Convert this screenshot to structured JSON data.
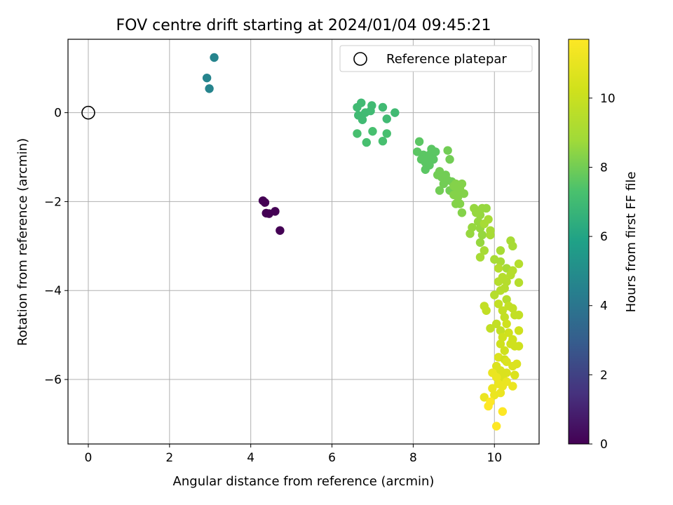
{
  "chart_data": {
    "type": "scatter",
    "title": "FOV centre drift starting at 2024/01/04 09:45:21",
    "xlabel": "Angular distance from reference (arcmin)",
    "ylabel": "Rotation from reference (arcmin)",
    "xlim": [
      -0.5,
      11.1
    ],
    "ylim": [
      -7.45,
      1.65
    ],
    "xticks": [
      0,
      2,
      4,
      6,
      8,
      10
    ],
    "yticks": [
      0,
      -2,
      -4,
      -6
    ],
    "xtick_labels": [
      "0",
      "2",
      "4",
      "6",
      "8",
      "10"
    ],
    "ytick_labels": [
      "0",
      "−2",
      "−4",
      "−6"
    ],
    "grid": true,
    "legend": {
      "entries": [
        "Reference platepar"
      ],
      "placement": "top-right"
    },
    "colorbar": {
      "label": "Hours from first FF file",
      "range": [
        0,
        11.7
      ],
      "ticks": [
        0,
        2,
        4,
        6,
        8,
        10
      ],
      "tick_labels": [
        "0",
        "2",
        "4",
        "6",
        "8",
        "10"
      ],
      "colormap": "viridis"
    },
    "reference": {
      "name": "Reference platepar",
      "x": 0,
      "y": 0
    },
    "series": [
      {
        "points": [
          [
            4.3,
            -1.98,
            0.0
          ],
          [
            4.35,
            -2.02,
            0.0
          ],
          [
            4.38,
            -2.26,
            0.0
          ],
          [
            4.45,
            -2.27,
            0.0
          ],
          [
            4.6,
            -2.22,
            0.0
          ],
          [
            4.72,
            -2.65,
            0.0
          ],
          [
            2.92,
            0.78,
            4.6
          ],
          [
            2.98,
            0.54,
            4.6
          ],
          [
            3.1,
            1.24,
            4.6
          ],
          [
            6.62,
            0.12,
            7.0
          ],
          [
            6.72,
            0.22,
            7.0
          ],
          [
            6.65,
            -0.06,
            7.0
          ],
          [
            6.75,
            -0.16,
            7.0
          ],
          [
            6.82,
            0.0,
            7.0
          ],
          [
            6.95,
            0.04,
            7.0
          ],
          [
            6.98,
            0.16,
            7.0
          ],
          [
            7.25,
            0.12,
            7.0
          ],
          [
            7.35,
            -0.14,
            7.0
          ],
          [
            7.55,
            0.0,
            7.0
          ],
          [
            6.62,
            -0.47,
            7.2
          ],
          [
            6.85,
            -0.67,
            7.2
          ],
          [
            7.0,
            -0.42,
            7.2
          ],
          [
            7.25,
            -0.64,
            7.2
          ],
          [
            7.35,
            -0.47,
            7.2
          ],
          [
            8.15,
            -0.65,
            7.6
          ],
          [
            8.1,
            -0.88,
            7.6
          ],
          [
            8.25,
            -0.95,
            7.6
          ],
          [
            8.3,
            -1.12,
            7.6
          ],
          [
            8.2,
            -1.05,
            7.6
          ],
          [
            8.4,
            -0.95,
            7.6
          ],
          [
            8.35,
            -1.05,
            7.6
          ],
          [
            8.45,
            -0.82,
            7.6
          ],
          [
            8.5,
            -1.05,
            7.6
          ],
          [
            8.3,
            -1.28,
            7.6
          ],
          [
            8.55,
            -0.88,
            7.6
          ],
          [
            8.4,
            -1.18,
            7.6
          ],
          [
            8.6,
            -1.4,
            8.0
          ],
          [
            8.65,
            -1.32,
            8.0
          ],
          [
            8.7,
            -1.45,
            8.0
          ],
          [
            8.75,
            -1.6,
            8.0
          ],
          [
            8.8,
            -1.4,
            8.0
          ],
          [
            8.85,
            -1.52,
            8.0
          ],
          [
            8.9,
            -1.75,
            8.0
          ],
          [
            8.65,
            -1.75,
            8.0
          ],
          [
            8.9,
            -1.05,
            8.0
          ],
          [
            8.85,
            -0.85,
            8.0
          ],
          [
            8.95,
            -1.55,
            8.0
          ],
          [
            9.0,
            -1.65,
            8.3
          ],
          [
            9.05,
            -1.6,
            8.3
          ],
          [
            9.1,
            -1.75,
            8.3
          ],
          [
            9.0,
            -1.85,
            8.3
          ],
          [
            9.15,
            -1.72,
            8.3
          ],
          [
            9.2,
            -1.6,
            8.3
          ],
          [
            9.25,
            -1.82,
            8.3
          ],
          [
            9.05,
            -2.05,
            8.3
          ],
          [
            9.15,
            -2.05,
            8.3
          ],
          [
            9.2,
            -2.25,
            8.3
          ],
          [
            9.1,
            -1.9,
            8.3
          ],
          [
            9.4,
            -2.72,
            8.6
          ],
          [
            9.45,
            -2.58,
            8.6
          ],
          [
            9.5,
            -2.15,
            8.6
          ],
          [
            9.55,
            -2.25,
            8.6
          ],
          [
            9.6,
            -2.45,
            8.6
          ],
          [
            9.65,
            -2.3,
            8.6
          ],
          [
            9.7,
            -2.15,
            8.6
          ],
          [
            9.65,
            -2.6,
            8.6
          ],
          [
            9.7,
            -2.75,
            8.6
          ],
          [
            9.8,
            -2.15,
            8.6
          ],
          [
            9.65,
            -2.92,
            8.6
          ],
          [
            9.75,
            -2.5,
            9.0
          ],
          [
            9.85,
            -2.4,
            9.0
          ],
          [
            9.9,
            -2.65,
            9.0
          ],
          [
            9.9,
            -2.75,
            9.0
          ],
          [
            9.75,
            -3.1,
            9.0
          ],
          [
            9.65,
            -3.25,
            9.0
          ],
          [
            10.0,
            -3.3,
            9.0
          ],
          [
            10.15,
            -3.1,
            9.0
          ],
          [
            10.15,
            -3.35,
            9.0
          ],
          [
            10.4,
            -2.88,
            9.0
          ],
          [
            10.45,
            -3.0,
            9.0
          ],
          [
            10.3,
            -3.5,
            9.0
          ],
          [
            10.1,
            -3.5,
            9.4
          ],
          [
            10.2,
            -3.7,
            9.4
          ],
          [
            10.3,
            -3.8,
            9.4
          ],
          [
            10.1,
            -3.8,
            9.4
          ],
          [
            10.25,
            -3.95,
            9.4
          ],
          [
            10.4,
            -3.65,
            9.4
          ],
          [
            10.45,
            -3.55,
            9.4
          ],
          [
            10.6,
            -3.4,
            9.4
          ],
          [
            10.6,
            -3.82,
            9.4
          ],
          [
            10.0,
            -4.1,
            9.4
          ],
          [
            10.15,
            -4.0,
            9.4
          ],
          [
            10.3,
            -4.2,
            9.4
          ],
          [
            9.75,
            -4.35,
            9.8
          ],
          [
            9.8,
            -4.45,
            9.8
          ],
          [
            10.1,
            -4.3,
            9.8
          ],
          [
            10.2,
            -4.45,
            9.8
          ],
          [
            10.35,
            -4.35,
            9.8
          ],
          [
            10.25,
            -4.6,
            9.8
          ],
          [
            10.45,
            -4.4,
            9.8
          ],
          [
            10.5,
            -4.55,
            9.8
          ],
          [
            10.6,
            -4.55,
            9.8
          ],
          [
            10.05,
            -4.75,
            9.8
          ],
          [
            10.15,
            -4.9,
            9.8
          ],
          [
            9.9,
            -4.85,
            9.8
          ],
          [
            10.3,
            -4.75,
            10.2
          ],
          [
            10.2,
            -5.05,
            10.2
          ],
          [
            10.35,
            -4.95,
            10.2
          ],
          [
            10.45,
            -5.1,
            10.2
          ],
          [
            10.6,
            -4.9,
            10.2
          ],
          [
            10.5,
            -5.25,
            10.2
          ],
          [
            10.6,
            -5.25,
            10.2
          ],
          [
            10.15,
            -5.2,
            10.2
          ],
          [
            10.25,
            -5.35,
            10.2
          ],
          [
            10.4,
            -5.2,
            10.2
          ],
          [
            10.1,
            -5.5,
            10.6
          ],
          [
            10.25,
            -5.55,
            10.2
          ],
          [
            10.3,
            -5.6,
            10.6
          ],
          [
            10.05,
            -5.7,
            10.6
          ],
          [
            10.15,
            -5.8,
            10.6
          ],
          [
            10.45,
            -5.7,
            10.6
          ],
          [
            10.55,
            -5.65,
            10.6
          ],
          [
            10.5,
            -5.9,
            10.6
          ],
          [
            10.3,
            -5.85,
            10.6
          ],
          [
            10.2,
            -5.95,
            10.6
          ],
          [
            9.95,
            -5.85,
            11.1
          ],
          [
            10.05,
            -5.95,
            11.1
          ],
          [
            10.1,
            -6.1,
            11.1
          ],
          [
            9.95,
            -6.2,
            11.1
          ],
          [
            10.2,
            -6.15,
            11.1
          ],
          [
            10.3,
            -6.05,
            11.1
          ],
          [
            10.45,
            -6.15,
            11.1
          ],
          [
            10.0,
            -6.35,
            11.1
          ],
          [
            10.15,
            -6.3,
            11.1
          ],
          [
            9.75,
            -6.4,
            11.1
          ],
          [
            9.85,
            -6.6,
            11.7
          ],
          [
            9.9,
            -6.5,
            11.7
          ],
          [
            10.2,
            -6.72,
            11.7
          ],
          [
            10.05,
            -7.05,
            11.7
          ]
        ]
      }
    ]
  }
}
